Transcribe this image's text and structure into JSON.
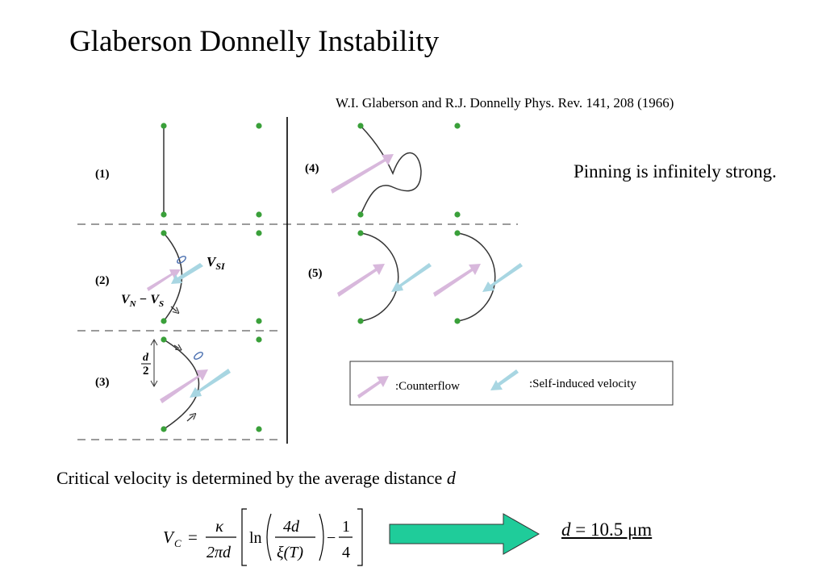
{
  "title": "Glaberson Donnelly Instability",
  "reference": "W.I. Glaberson and R.J. Donnelly Phys. Rev. 141, 208 (1966)",
  "pinning_note": "Pinning is infinitely strong.",
  "critical_note": {
    "text": "Critical velocity is determined by the average distance ",
    "variable": "d"
  },
  "panels": {
    "p1": "(1)",
    "p2": "(2)",
    "p3": "(3)",
    "p4": "(4)",
    "p5": "(5)"
  },
  "annotations": {
    "vsi_main": "V",
    "vsi_sub": "SI",
    "vn": "V",
    "vn_sub": "N",
    "minus": " − ",
    "vs": "V",
    "vs_sub": "S",
    "d_num": "d",
    "d_den": "2"
  },
  "legend": {
    "counterflow": ":Counterflow",
    "self_induced": ":Self-induced velocity"
  },
  "formula": {
    "lhs": "V",
    "lhs_sub": "C",
    "eq": "=",
    "kappa": "κ",
    "den": "2πd",
    "ln": "ln",
    "num4d": "4d",
    "xi": "ξ(T)",
    "minus": "−",
    "one": "1",
    "four": "4"
  },
  "result": {
    "var": "d",
    "value": " = 10.5 μm"
  },
  "colors": {
    "pin_dot": "#3aa03a",
    "counterflow_arrow": "#d8b8dc",
    "self_induced_arrow": "#a8d6e2",
    "big_arrow": "#1fcc9a",
    "dash_line": "#7a7a7a"
  }
}
